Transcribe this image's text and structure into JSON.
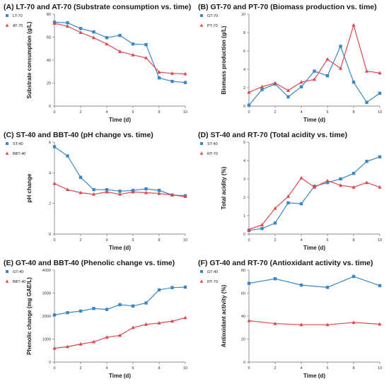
{
  "colors": {
    "blue": "#3a87c6",
    "red": "#e0464e"
  },
  "chart_data": [
    {
      "panel": "A",
      "type": "line",
      "title": "(A) LT-70 and AT-70 (Substrate consumption vs. time)",
      "xlabel": "Time (d)",
      "ylabel": "Substrate consumption (g/L)",
      "xlim": [
        0,
        10
      ],
      "ylim": [
        0,
        80
      ],
      "xticks": [
        0,
        2,
        4,
        6,
        8,
        10
      ],
      "yticks": [
        0,
        20,
        40,
        60,
        80
      ],
      "legend": "top-left",
      "series": [
        {
          "name": "LT-70",
          "color": "blue",
          "marker": "square",
          "x": [
            0,
            1,
            2,
            3,
            4,
            5,
            6,
            7,
            8,
            9,
            10
          ],
          "y": [
            73,
            72.5,
            67.5,
            64.5,
            59.5,
            61.5,
            54,
            53.5,
            24.5,
            21.5,
            20.5
          ]
        },
        {
          "name": "AT-70",
          "color": "red",
          "marker": "triangle",
          "x": [
            0,
            1,
            2,
            3,
            4,
            5,
            6,
            7,
            8,
            9,
            10
          ],
          "y": [
            72,
            69.5,
            64,
            59.5,
            54,
            47.5,
            44.5,
            42,
            29.5,
            28.5,
            28
          ]
        }
      ]
    },
    {
      "panel": "B",
      "type": "line",
      "title": "(B) GT-70 and PT-70 (Biomass production vs. time)",
      "xlabel": "Time (d)",
      "ylabel": "Biomass production (g/L)",
      "xlim": [
        0,
        10
      ],
      "ylim": [
        0,
        10
      ],
      "xticks": [
        0,
        2,
        4,
        6,
        8,
        10
      ],
      "yticks": [
        0,
        2,
        4,
        6,
        8,
        10
      ],
      "legend": "top-left",
      "series": [
        {
          "name": "GT-70",
          "color": "blue",
          "marker": "square",
          "x": [
            0,
            1,
            2,
            3,
            4,
            5,
            6,
            7,
            8,
            9,
            10
          ],
          "y": [
            0.1,
            1.8,
            2.4,
            1.0,
            2.1,
            3.8,
            3.3,
            6.5,
            2.6,
            0.4,
            1.4
          ]
        },
        {
          "name": "PT-70",
          "color": "red",
          "marker": "triangle",
          "x": [
            0,
            1,
            2,
            3,
            4,
            5,
            6,
            7,
            8,
            9,
            10
          ],
          "y": [
            1.5,
            2.1,
            2.5,
            1.7,
            2.6,
            2.9,
            5.1,
            4.1,
            8.8,
            3.8,
            3.6
          ]
        }
      ]
    },
    {
      "panel": "C",
      "type": "line",
      "title": "(C) ST-40 and BBT-40 (pH change vs. time)",
      "xlabel": "Time (d)",
      "ylabel": "pH change",
      "xlim": [
        0,
        10
      ],
      "ylim": [
        0,
        6
      ],
      "xticks": [
        0,
        2,
        4,
        6,
        8,
        10
      ],
      "yticks": [
        0,
        2,
        4,
        6
      ],
      "legend": "top-left",
      "series": [
        {
          "name": "ST-40",
          "color": "blue",
          "marker": "square",
          "x": [
            0,
            1,
            2,
            3,
            4,
            5,
            6,
            7,
            8,
            9,
            10
          ],
          "y": [
            5.7,
            5.1,
            3.7,
            2.9,
            2.9,
            2.8,
            2.85,
            2.95,
            2.85,
            2.55,
            2.5
          ]
        },
        {
          "name": "BBT-40",
          "color": "red",
          "marker": "triangle",
          "x": [
            0,
            1,
            2,
            3,
            4,
            5,
            6,
            7,
            8,
            9,
            10
          ],
          "y": [
            3.3,
            2.9,
            2.7,
            2.6,
            2.75,
            2.6,
            2.75,
            2.7,
            2.65,
            2.55,
            2.45
          ]
        }
      ]
    },
    {
      "panel": "D",
      "type": "line",
      "title": "(D) ST-40 and RT-70 (Total acidity vs. time)",
      "xlabel": "Time (d)",
      "ylabel": "Total acidity (%)",
      "xlim": [
        0,
        10
      ],
      "ylim": [
        0,
        5
      ],
      "xticks": [
        0,
        2,
        4,
        6,
        8,
        10
      ],
      "yticks": [
        0,
        1,
        2,
        3,
        4,
        5
      ],
      "legend": "top-left",
      "series": [
        {
          "name": "ST-40",
          "color": "blue",
          "marker": "square",
          "x": [
            0,
            1,
            2,
            3,
            4,
            5,
            6,
            7,
            8,
            9,
            10
          ],
          "y": [
            0.2,
            0.3,
            0.6,
            1.7,
            1.65,
            2.6,
            2.8,
            3.0,
            3.3,
            3.95,
            4.2
          ]
        },
        {
          "name": "RT-70",
          "color": "red",
          "marker": "triangle",
          "x": [
            0,
            1,
            2,
            3,
            4,
            5,
            6,
            7,
            8,
            9,
            10
          ],
          "y": [
            0.25,
            0.5,
            1.4,
            2.05,
            3.05,
            2.55,
            2.9,
            2.65,
            2.55,
            2.8,
            2.55
          ]
        }
      ]
    },
    {
      "panel": "E",
      "type": "line",
      "title": "(E) GT-40 and BBT-40 (Phenolic change vs. time)",
      "xlabel": "Time (d)",
      "ylabel": "Phenolic change (mg GAE/L)",
      "xlim": [
        0,
        10
      ],
      "ylim": [
        0,
        4000
      ],
      "xticks": [
        0,
        2,
        4,
        6,
        8,
        10
      ],
      "yticks": [
        0,
        1000,
        2000,
        3000,
        4000
      ],
      "legend": "top-left",
      "series": [
        {
          "name": "GT-40",
          "color": "blue",
          "marker": "square",
          "x": [
            0,
            1,
            2,
            3,
            4,
            5,
            6,
            7,
            8,
            9,
            10
          ],
          "y": [
            2050,
            2150,
            2220,
            2330,
            2290,
            2500,
            2440,
            2570,
            3140,
            3240,
            3260
          ]
        },
        {
          "name": "BBT-40",
          "color": "red",
          "marker": "triangle",
          "x": [
            0,
            1,
            2,
            3,
            4,
            5,
            6,
            7,
            8,
            9,
            10
          ],
          "y": [
            600,
            670,
            780,
            880,
            1080,
            1160,
            1500,
            1640,
            1700,
            1780,
            1930
          ]
        }
      ]
    },
    {
      "panel": "F",
      "type": "line",
      "title": "(F) GT-40 and RT-70 (Antioxidant activity vs. time)",
      "xlabel": "Time (d)",
      "ylabel": "Antioxidant activity (%)",
      "xlim": [
        0,
        10
      ],
      "ylim": [
        0,
        80
      ],
      "xticks": [
        0,
        2,
        4,
        6,
        8,
        10
      ],
      "yticks": [
        0,
        20,
        40,
        60,
        80
      ],
      "legend": "top-left",
      "series": [
        {
          "name": "GT-40",
          "color": "blue",
          "marker": "square",
          "x": [
            0,
            2,
            4,
            6,
            8,
            10
          ],
          "y": [
            68.5,
            72.5,
            67,
            65,
            74.5,
            66.5
          ]
        },
        {
          "name": "RT-70",
          "color": "red",
          "marker": "triangle",
          "x": [
            0,
            2,
            4,
            6,
            8,
            10
          ],
          "y": [
            36,
            33.5,
            32.5,
            32.5,
            34.5,
            33
          ]
        }
      ]
    }
  ]
}
